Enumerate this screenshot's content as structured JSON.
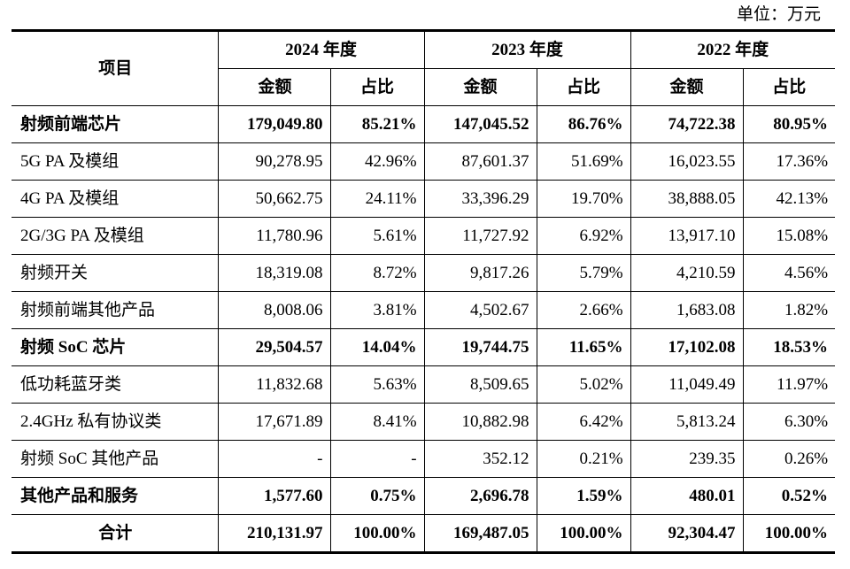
{
  "unit_label": "单位：万元",
  "header": {
    "item_label": "项目",
    "years": [
      "2024 年度",
      "2023 年度",
      "2022 年度"
    ],
    "amount_label": "金额",
    "share_label": "占比"
  },
  "rows": [
    {
      "name": "射频前端芯片",
      "bold": true,
      "v": [
        "179,049.80",
        "85.21%",
        "147,045.52",
        "86.76%",
        "74,722.38",
        "80.95%"
      ]
    },
    {
      "name": "5G PA 及模组",
      "bold": false,
      "v": [
        "90,278.95",
        "42.96%",
        "87,601.37",
        "51.69%",
        "16,023.55",
        "17.36%"
      ]
    },
    {
      "name": "4G PA 及模组",
      "bold": false,
      "v": [
        "50,662.75",
        "24.11%",
        "33,396.29",
        "19.70%",
        "38,888.05",
        "42.13%"
      ]
    },
    {
      "name": "2G/3G PA 及模组",
      "bold": false,
      "v": [
        "11,780.96",
        "5.61%",
        "11,727.92",
        "6.92%",
        "13,917.10",
        "15.08%"
      ]
    },
    {
      "name": "射频开关",
      "bold": false,
      "v": [
        "18,319.08",
        "8.72%",
        "9,817.26",
        "5.79%",
        "4,210.59",
        "4.56%"
      ]
    },
    {
      "name": "射频前端其他产品",
      "bold": false,
      "v": [
        "8,008.06",
        "3.81%",
        "4,502.67",
        "2.66%",
        "1,683.08",
        "1.82%"
      ]
    },
    {
      "name": "射频 SoC 芯片",
      "bold": true,
      "v": [
        "29,504.57",
        "14.04%",
        "19,744.75",
        "11.65%",
        "17,102.08",
        "18.53%"
      ]
    },
    {
      "name": "低功耗蓝牙类",
      "bold": false,
      "v": [
        "11,832.68",
        "5.63%",
        "8,509.65",
        "5.02%",
        "11,049.49",
        "11.97%"
      ]
    },
    {
      "name": "2.4GHz 私有协议类",
      "bold": false,
      "v": [
        "17,671.89",
        "8.41%",
        "10,882.98",
        "6.42%",
        "5,813.24",
        "6.30%"
      ]
    },
    {
      "name": "射频 SoC 其他产品",
      "bold": false,
      "v": [
        "-",
        "-",
        "352.12",
        "0.21%",
        "239.35",
        "0.26%"
      ]
    },
    {
      "name": "其他产品和服务",
      "bold": true,
      "v": [
        "1,577.60",
        "0.75%",
        "2,696.78",
        "1.59%",
        "480.01",
        "0.52%"
      ]
    },
    {
      "name": "合计",
      "bold": true,
      "total": true,
      "v": [
        "210,131.97",
        "100.00%",
        "169,487.05",
        "100.00%",
        "92,304.47",
        "100.00%"
      ]
    }
  ]
}
